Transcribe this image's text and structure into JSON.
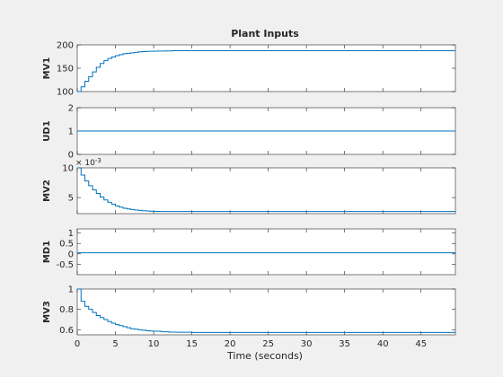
{
  "figure": {
    "title": "Plant Inputs",
    "xlabel": "Time (seconds)",
    "line_color": "#0072bd",
    "axes_color": "#262626"
  },
  "chart_data": [
    {
      "type": "line",
      "ylabel": "MV1",
      "xlim": [
        0,
        49.5
      ],
      "ylim": [
        100,
        200
      ],
      "yticks": [
        100,
        150,
        200
      ],
      "step": true,
      "x": [
        0,
        0.5,
        1,
        1.5,
        2,
        2.5,
        3,
        3.5,
        4,
        4.5,
        5,
        5.5,
        6,
        6.5,
        7,
        7.5,
        8,
        8.5,
        9,
        9.5,
        10,
        10.5,
        11,
        11.5,
        12,
        12.5,
        13,
        49.5
      ],
      "y": [
        100,
        110,
        122,
        132,
        142,
        152,
        160,
        166,
        171,
        174,
        177,
        179,
        181,
        182,
        183,
        184,
        185,
        185.5,
        186,
        186.3,
        186.5,
        186.7,
        186.8,
        186.9,
        187,
        187.5,
        187.5,
        187.5
      ]
    },
    {
      "type": "line",
      "ylabel": "UD1",
      "xlim": [
        0,
        49.5
      ],
      "ylim": [
        0,
        2
      ],
      "yticks": [
        0,
        1,
        2
      ],
      "step": false,
      "x": [
        0,
        49.5
      ],
      "y": [
        1,
        1
      ]
    },
    {
      "type": "line",
      "ylabel": "MV2",
      "exponent_label": "× 10^-3",
      "xlim": [
        0,
        49.5
      ],
      "ylim": [
        0.0023,
        0.01
      ],
      "yticks": [
        0.005,
        0.01
      ],
      "ytick_labels": [
        "5",
        "10"
      ],
      "step": true,
      "x": [
        0,
        0.5,
        1,
        1.5,
        2,
        2.5,
        3,
        3.5,
        4,
        4.5,
        5,
        5.5,
        6,
        6.5,
        7,
        7.5,
        8,
        8.5,
        9,
        9.5,
        10,
        11,
        12,
        49.5
      ],
      "y": [
        0.01,
        0.0088,
        0.0078,
        0.007,
        0.0063,
        0.0057,
        0.0051,
        0.0046,
        0.0042,
        0.0039,
        0.0036,
        0.0034,
        0.0032,
        0.0031,
        0.003,
        0.0029,
        0.00285,
        0.0028,
        0.00275,
        0.0027,
        0.00268,
        0.00265,
        0.00265,
        0.00265
      ]
    },
    {
      "type": "line",
      "ylabel": "MD1",
      "xlim": [
        0,
        49.5
      ],
      "ylim": [
        -1,
        1.2
      ],
      "yticks": [
        -0.5,
        0,
        0.5,
        1
      ],
      "ytick_labels": [
        "-0.5",
        "0",
        "0.5",
        "1"
      ],
      "step": false,
      "x": [
        0,
        49.5
      ],
      "y": [
        0.05,
        0.05
      ]
    },
    {
      "type": "line",
      "ylabel": "MV3",
      "xlim": [
        0,
        49.5
      ],
      "ylim": [
        0.55,
        1
      ],
      "yticks": [
        0.6,
        0.8,
        1
      ],
      "ytick_labels": [
        "0.6",
        "0.8",
        "1"
      ],
      "xticks": [
        0,
        5,
        10,
        15,
        20,
        25,
        30,
        35,
        40,
        45
      ],
      "step": true,
      "x": [
        0,
        0.5,
        1,
        1.5,
        2,
        2.5,
        3,
        3.5,
        4,
        4.5,
        5,
        5.5,
        6,
        6.5,
        7,
        7.5,
        8,
        8.5,
        9,
        9.5,
        10,
        11,
        12,
        13,
        15,
        49.5
      ],
      "y": [
        1,
        0.88,
        0.83,
        0.8,
        0.77,
        0.74,
        0.72,
        0.7,
        0.68,
        0.665,
        0.65,
        0.64,
        0.63,
        0.62,
        0.61,
        0.605,
        0.6,
        0.595,
        0.59,
        0.587,
        0.585,
        0.58,
        0.577,
        0.575,
        0.573,
        0.573
      ]
    }
  ]
}
